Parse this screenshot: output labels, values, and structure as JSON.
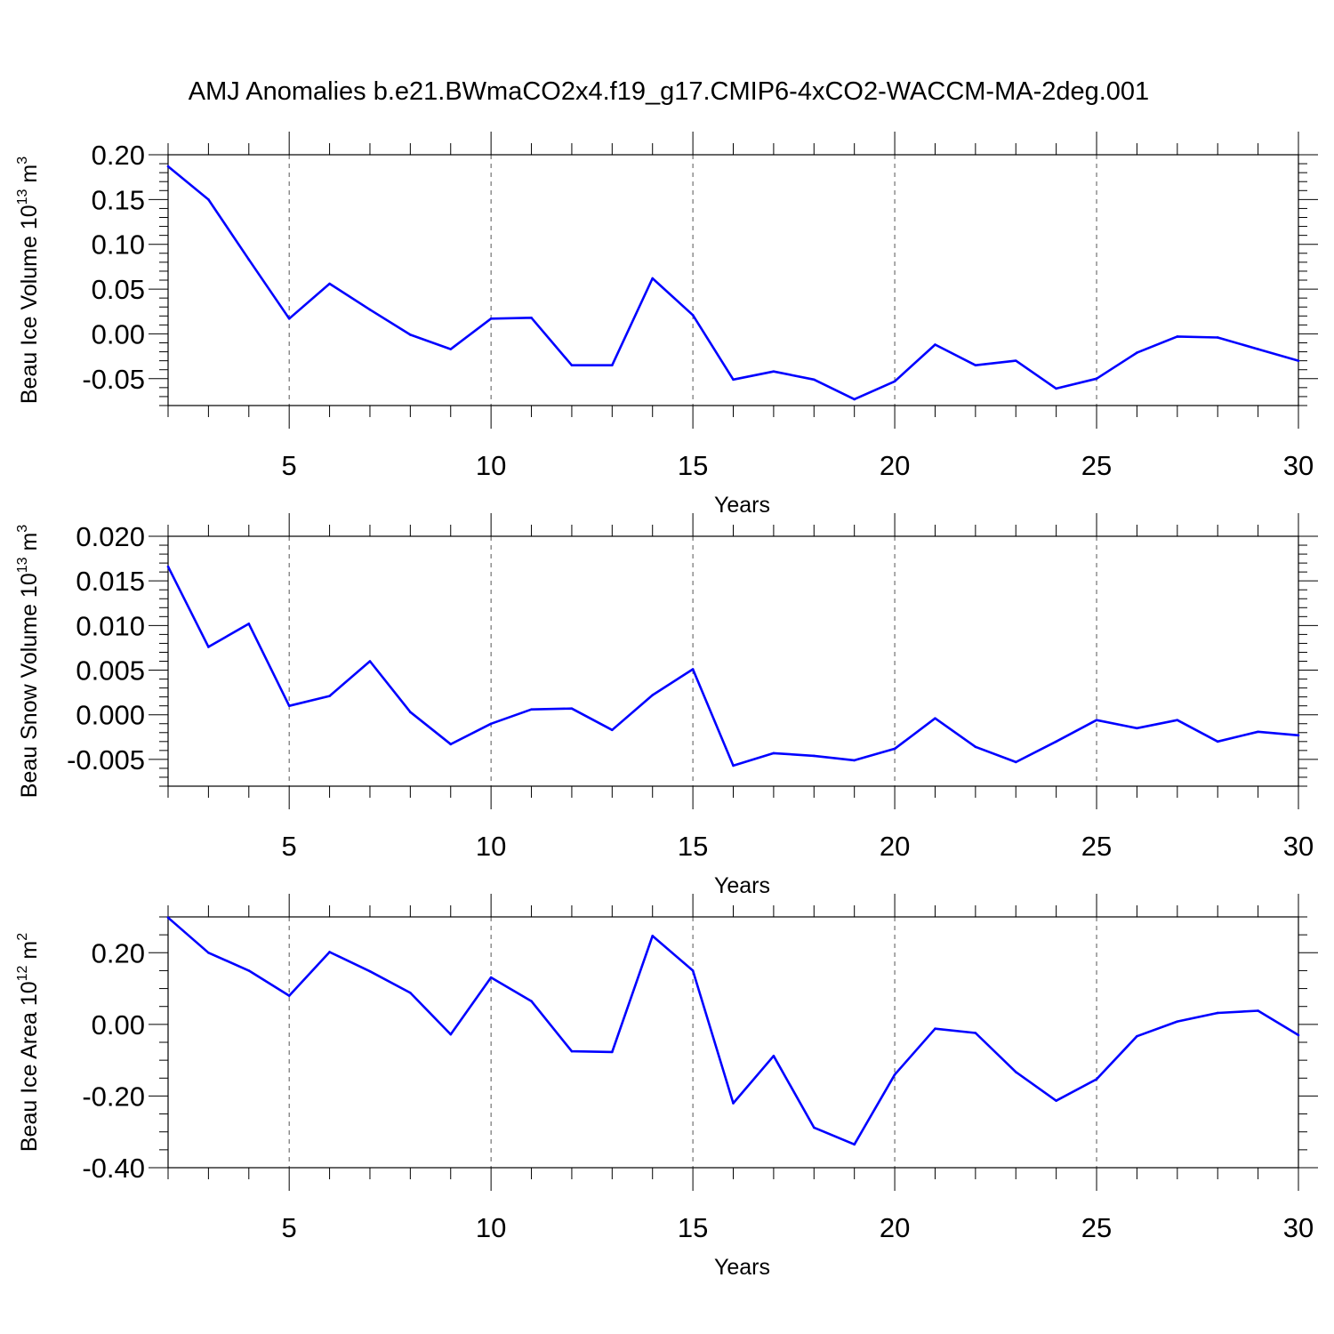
{
  "title": "AMJ Anomalies b.e21.BWmaCO2x4.f19_g17.CMIP6-4xCO2-WACCM-MA-2deg.001",
  "line_color": "#0000ff",
  "chart_data": [
    {
      "type": "line",
      "ylabel": "Beau Ice Volume 10",
      "ylabel_exp": "13",
      "ylabel_unit": " m",
      "ylabel_unit_exp": "3",
      "xlabel": "Years",
      "xlim": [
        2,
        30
      ],
      "ylim": [
        -0.08,
        0.2
      ],
      "x_ticks": [
        5,
        10,
        15,
        20,
        25,
        30
      ],
      "x_tick_labels": [
        "5",
        "10",
        "15",
        "20",
        "25",
        "30"
      ],
      "y_ticks": [
        -0.05,
        0.0,
        0.05,
        0.1,
        0.15,
        0.2
      ],
      "y_tick_labels": [
        "-0.05",
        "0.00",
        "0.05",
        "0.10",
        "0.15",
        "0.20"
      ],
      "y_minor_step": 0.01,
      "grid": "dashed vertical at major x ticks",
      "x": [
        2,
        3,
        4,
        5,
        6,
        7,
        8,
        9,
        10,
        11,
        12,
        13,
        14,
        15,
        16,
        17,
        18,
        19,
        20,
        21,
        22,
        23,
        24,
        25,
        26,
        27,
        28,
        29,
        30
      ],
      "values": [
        0.187,
        0.15,
        0.083,
        0.017,
        0.056,
        0.027,
        -0.001,
        -0.017,
        0.017,
        0.018,
        -0.035,
        -0.035,
        0.062,
        0.021,
        -0.051,
        -0.042,
        -0.051,
        -0.073,
        -0.053,
        -0.012,
        -0.035,
        -0.03,
        -0.061,
        -0.05,
        -0.021,
        -0.003,
        -0.004,
        -0.017,
        -0.03
      ]
    },
    {
      "type": "line",
      "ylabel": "Beau Snow Volume 10",
      "ylabel_exp": "13",
      "ylabel_unit": " m",
      "ylabel_unit_exp": "3",
      "xlabel": "Years",
      "xlim": [
        2,
        30
      ],
      "ylim": [
        -0.008,
        0.02
      ],
      "x_ticks": [
        5,
        10,
        15,
        20,
        25,
        30
      ],
      "x_tick_labels": [
        "5",
        "10",
        "15",
        "20",
        "25",
        "30"
      ],
      "y_ticks": [
        -0.005,
        0.0,
        0.005,
        0.01,
        0.015,
        0.02
      ],
      "y_tick_labels": [
        "-0.005",
        "0.000",
        "0.005",
        "0.010",
        "0.015",
        "0.020"
      ],
      "y_minor_step": 0.001,
      "grid": "dashed vertical at major x ticks",
      "x": [
        2,
        3,
        4,
        5,
        6,
        7,
        8,
        9,
        10,
        11,
        12,
        13,
        14,
        15,
        16,
        17,
        18,
        19,
        20,
        21,
        22,
        23,
        24,
        25,
        26,
        27,
        28,
        29,
        30
      ],
      "values": [
        0.0166,
        0.0076,
        0.0102,
        0.001,
        0.0021,
        0.006,
        0.0003,
        -0.0033,
        -0.001,
        0.0006,
        0.0007,
        -0.0017,
        0.0022,
        0.0051,
        -0.0057,
        -0.0043,
        -0.0046,
        -0.0051,
        -0.0038,
        -0.0004,
        -0.0036,
        -0.0053,
        -0.003,
        -0.0006,
        -0.0015,
        -0.0006,
        -0.003,
        -0.0019,
        -0.0023
      ]
    },
    {
      "type": "line",
      "ylabel": "Beau Ice Area 10",
      "ylabel_exp": "12",
      "ylabel_unit": " m",
      "ylabel_unit_exp": "2",
      "xlabel": "Years",
      "xlim": [
        2,
        30
      ],
      "ylim": [
        -0.4,
        0.3
      ],
      "x_ticks": [
        5,
        10,
        15,
        20,
        25,
        30
      ],
      "x_tick_labels": [
        "5",
        "10",
        "15",
        "20",
        "25",
        "30"
      ],
      "y_ticks": [
        -0.4,
        -0.2,
        0.0,
        0.2
      ],
      "y_tick_labels": [
        "-0.40",
        "-0.20",
        "0.00",
        "0.20"
      ],
      "y_minor_step": 0.05,
      "grid": "dashed vertical at major x ticks",
      "x": [
        2,
        3,
        4,
        5,
        6,
        7,
        8,
        9,
        10,
        11,
        12,
        13,
        14,
        15,
        16,
        17,
        18,
        19,
        20,
        21,
        22,
        23,
        24,
        25,
        26,
        27,
        28,
        29,
        30
      ],
      "values": [
        0.298,
        0.2,
        0.15,
        0.08,
        0.202,
        0.148,
        0.088,
        -0.028,
        0.131,
        0.065,
        -0.075,
        -0.077,
        0.247,
        0.15,
        -0.22,
        -0.088,
        -0.288,
        -0.335,
        -0.14,
        -0.012,
        -0.024,
        -0.133,
        -0.213,
        -0.153,
        -0.033,
        0.008,
        0.032,
        0.038,
        -0.03
      ]
    }
  ]
}
